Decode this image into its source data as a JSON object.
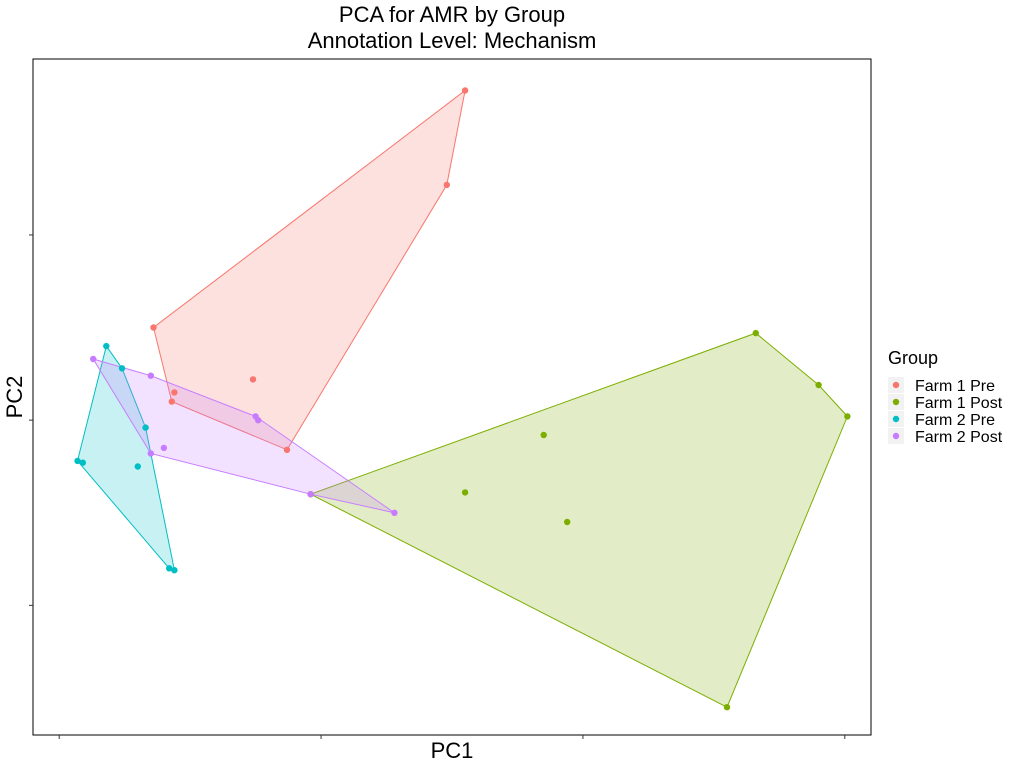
{
  "chart_data": {
    "type": "scatter",
    "title": "PCA for AMR by Group",
    "subtitle": "Annotation Level: Mechanism",
    "xlabel": "PC1",
    "ylabel": "PC2",
    "xlim": [
      -1.3,
      1.9
    ],
    "ylim": [
      -1.7,
      1.95
    ],
    "x_ticks": [
      -1.2,
      -0.2,
      0.8,
      1.8
    ],
    "y_ticks": [
      -1.0,
      0.0,
      1.0
    ],
    "tick_labels_shown": false,
    "grid": false,
    "hulls": true,
    "legend": {
      "title": "Group",
      "placement": "right"
    },
    "series": [
      {
        "name": "Farm 1 Pre",
        "color": "#F8766D",
        "points": [
          {
            "x": 0.35,
            "y": 1.78
          },
          {
            "x": 0.28,
            "y": 1.27
          },
          {
            "x": -0.84,
            "y": 0.5
          },
          {
            "x": -0.46,
            "y": 0.22
          },
          {
            "x": -0.76,
            "y": 0.15
          },
          {
            "x": -0.77,
            "y": 0.1
          },
          {
            "x": -0.33,
            "y": -0.16
          }
        ]
      },
      {
        "name": "Farm 1 Post",
        "color": "#7CAE00",
        "points": [
          {
            "x": 1.46,
            "y": 0.47
          },
          {
            "x": 1.7,
            "y": 0.19
          },
          {
            "x": 1.81,
            "y": 0.02
          },
          {
            "x": 0.65,
            "y": -0.08
          },
          {
            "x": 0.35,
            "y": -0.39
          },
          {
            "x": 0.74,
            "y": -0.55
          },
          {
            "x": -0.24,
            "y": -0.4
          },
          {
            "x": 1.35,
            "y": -1.55
          }
        ]
      },
      {
        "name": "Farm 2 Pre",
        "color": "#00BFC4",
        "points": [
          {
            "x": -1.02,
            "y": 0.4
          },
          {
            "x": -0.96,
            "y": 0.28
          },
          {
            "x": -0.87,
            "y": -0.04
          },
          {
            "x": -1.13,
            "y": -0.22
          },
          {
            "x": -1.11,
            "y": -0.23
          },
          {
            "x": -0.9,
            "y": -0.25
          },
          {
            "x": -0.78,
            "y": -0.8
          },
          {
            "x": -0.76,
            "y": -0.81
          }
        ]
      },
      {
        "name": "Farm 2 Post",
        "color": "#C77CFF",
        "points": [
          {
            "x": -1.07,
            "y": 0.33
          },
          {
            "x": -0.85,
            "y": 0.24
          },
          {
            "x": -0.8,
            "y": -0.15
          },
          {
            "x": -0.85,
            "y": -0.18
          },
          {
            "x": -0.45,
            "y": 0.02
          },
          {
            "x": -0.44,
            "y": 0.0
          },
          {
            "x": -0.24,
            "y": -0.4
          },
          {
            "x": 0.08,
            "y": -0.5
          }
        ]
      }
    ]
  }
}
